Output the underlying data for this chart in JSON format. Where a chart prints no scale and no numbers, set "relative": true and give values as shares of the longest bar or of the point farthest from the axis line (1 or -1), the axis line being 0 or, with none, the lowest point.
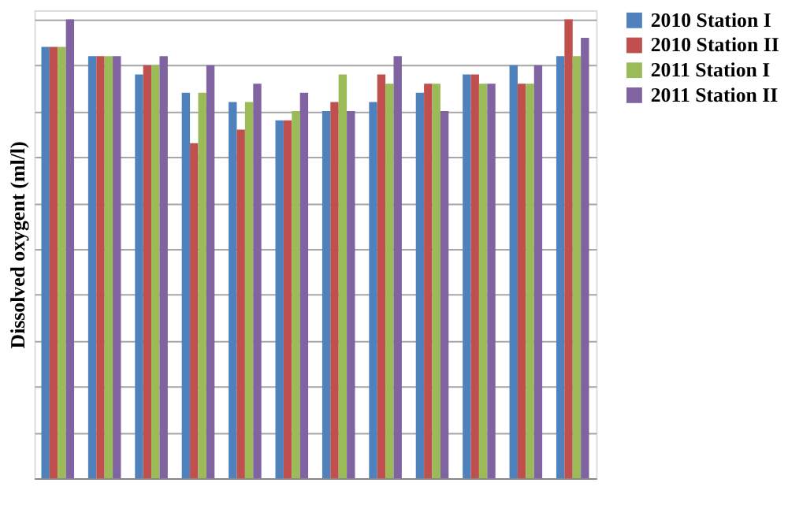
{
  "chart_data": {
    "type": "bar",
    "ylabel": "Dissolved oxygent (ml/l)",
    "relative": true,
    "grid": "y",
    "legend": "right",
    "tick_labels": false,
    "categories": [
      null,
      null,
      null,
      null,
      null,
      null,
      null,
      null,
      null,
      null,
      null,
      null
    ],
    "series": [
      {
        "name": "2010 Station I",
        "color": "#4f81bd",
        "values": [
          0.94,
          0.92,
          0.88,
          0.84,
          0.82,
          0.78,
          0.8,
          0.82,
          0.84,
          0.88,
          0.9,
          0.92
        ]
      },
      {
        "name": "2010 Station II",
        "color": "#c0504d",
        "values": [
          0.94,
          0.92,
          0.9,
          0.73,
          0.76,
          0.78,
          0.82,
          0.88,
          0.86,
          0.88,
          0.86,
          1
        ]
      },
      {
        "name": "2011 Station I",
        "color": "#9bbb59",
        "values": [
          0.94,
          0.92,
          0.9,
          0.84,
          0.82,
          0.8,
          0.88,
          0.86,
          0.86,
          0.86,
          0.86,
          0.92
        ]
      },
      {
        "name": "2011 Station II",
        "color": "#8064a2",
        "values": [
          1,
          0.92,
          0.92,
          0.9,
          0.86,
          0.84,
          0.8,
          0.92,
          0.8,
          0.86,
          0.9,
          0.96
        ]
      }
    ]
  }
}
